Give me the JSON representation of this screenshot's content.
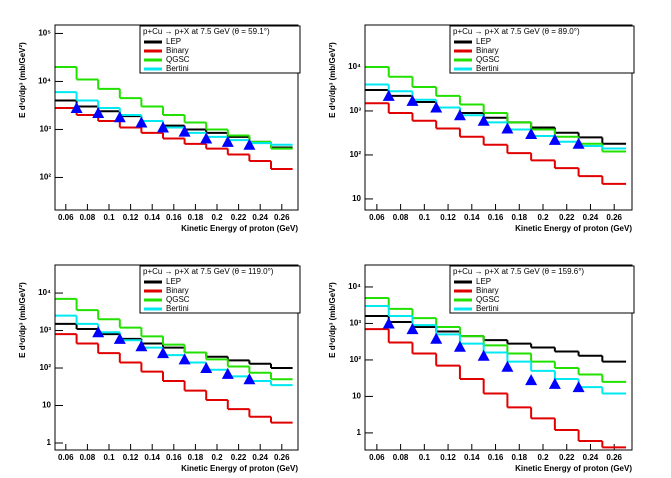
{
  "chart_data": [
    {
      "type": "histogram",
      "title": "p+Cu → p+X at 7.5 GeV (θ = 59.1°)",
      "x_label": "Kinetic Energy of proton (GeV)",
      "y_label": "E d³σ/dp³ (mb/GeV²)",
      "log_y": true,
      "xlim": [
        0.05,
        0.275
      ],
      "xticks": [
        0.06,
        0.08,
        0.1,
        0.12,
        0.14,
        0.16,
        0.18,
        0.2,
        0.22,
        0.24,
        0.26
      ],
      "ylim": [
        21,
        150000
      ],
      "yticks": [
        {
          "value": 100,
          "label": "10²"
        },
        {
          "value": 1000,
          "label": "10³"
        },
        {
          "value": 10000,
          "label": "10⁴"
        },
        {
          "value": 100000,
          "label": "10⁵"
        }
      ],
      "bins": [
        0.05,
        0.07,
        0.09,
        0.11,
        0.13,
        0.15,
        0.17,
        0.19,
        0.21,
        0.23,
        0.25,
        0.27
      ],
      "series": [
        {
          "name": "LEP",
          "color": "#000000",
          "values": [
            4000,
            3000,
            2400,
            1900,
            1500,
            1200,
            1000,
            850,
            700,
            550,
            420
          ]
        },
        {
          "name": "Binary",
          "color": "#e00000",
          "values": [
            2800,
            2000,
            1500,
            1100,
            850,
            650,
            500,
            400,
            300,
            220,
            150
          ]
        },
        {
          "name": "QGSC",
          "color": "#22e000",
          "values": [
            20000,
            11000,
            7000,
            4500,
            3000,
            2000,
            1400,
            1000,
            750,
            550,
            400
          ]
        },
        {
          "name": "Bertini",
          "color": "#00e8f0",
          "values": [
            6000,
            4000,
            2800,
            2000,
            1500,
            1100,
            850,
            700,
            600,
            520,
            480
          ]
        }
      ],
      "points": {
        "color": "#0000ff",
        "x": [
          0.07,
          0.09,
          0.11,
          0.13,
          0.15,
          0.17,
          0.19,
          0.21,
          0.23
        ],
        "values": [
          2800,
          2200,
          1800,
          1400,
          1100,
          900,
          650,
          550,
          480
        ]
      }
    },
    {
      "type": "histogram",
      "title": "p+Cu → p+X at 7.5 GeV (θ = 89.0°)",
      "x_label": "Kinetic Energy of proton (GeV)",
      "y_label": "E d³σ/dp³ (mb/GeV²)",
      "log_y": true,
      "xlim": [
        0.05,
        0.275
      ],
      "xticks": [
        0.06,
        0.08,
        0.1,
        0.12,
        0.14,
        0.16,
        0.18,
        0.2,
        0.22,
        0.24,
        0.26
      ],
      "ylim": [
        5.6,
        90000
      ],
      "yticks": [
        10,
        {
          "value": 100,
          "label": "10²"
        },
        {
          "value": 1000,
          "label": "10³"
        },
        {
          "value": 10000,
          "label": "10⁴"
        }
      ],
      "bins": [
        0.05,
        0.07,
        0.09,
        0.11,
        0.13,
        0.15,
        0.17,
        0.19,
        0.21,
        0.23,
        0.25,
        0.27
      ],
      "series": [
        {
          "name": "LEP",
          "color": "#000000",
          "values": [
            3000,
            2200,
            1600,
            1200,
            900,
            700,
            550,
            420,
            320,
            250,
            180
          ]
        },
        {
          "name": "Binary",
          "color": "#e00000",
          "values": [
            1500,
            900,
            600,
            400,
            260,
            170,
            110,
            75,
            50,
            33,
            22
          ]
        },
        {
          "name": "QGSC",
          "color": "#22e000",
          "values": [
            10000,
            6000,
            3500,
            2200,
            1400,
            900,
            550,
            380,
            260,
            180,
            120
          ]
        },
        {
          "name": "Bertini",
          "color": "#00e8f0",
          "values": [
            4000,
            2800,
            1800,
            1200,
            800,
            550,
            380,
            270,
            200,
            160,
            140
          ]
        }
      ],
      "points": {
        "color": "#0000ff",
        "x": [
          0.07,
          0.09,
          0.11,
          0.13,
          0.15,
          0.17,
          0.19,
          0.21,
          0.23
        ],
        "values": [
          2200,
          1700,
          1200,
          800,
          600,
          400,
          300,
          220,
          180
        ]
      }
    },
    {
      "type": "histogram",
      "title": "p+Cu → p+X at 7.5 GeV (θ = 119.0°)",
      "x_label": "Kinetic Energy of proton (GeV)",
      "y_label": "E d³σ/dp³ (mb/GeV²)",
      "log_y": true,
      "xlim": [
        0.05,
        0.275
      ],
      "xticks": [
        0.06,
        0.08,
        0.1,
        0.12,
        0.14,
        0.16,
        0.18,
        0.2,
        0.22,
        0.24,
        0.26
      ],
      "ylim": [
        0.65,
        56000
      ],
      "yticks": [
        1,
        10,
        {
          "value": 100,
          "label": "10²"
        },
        {
          "value": 1000,
          "label": "10³"
        },
        {
          "value": 10000,
          "label": "10⁴"
        }
      ],
      "bins": [
        0.05,
        0.07,
        0.09,
        0.11,
        0.13,
        0.15,
        0.17,
        0.19,
        0.21,
        0.23,
        0.25,
        0.27
      ],
      "series": [
        {
          "name": "LEP",
          "color": "#000000",
          "values": [
            1500,
            1100,
            800,
            600,
            450,
            350,
            260,
            200,
            160,
            130,
            100
          ]
        },
        {
          "name": "Binary",
          "color": "#e00000",
          "values": [
            800,
            450,
            250,
            140,
            80,
            45,
            25,
            14,
            8,
            5,
            3.5
          ]
        },
        {
          "name": "QGSC",
          "color": "#22e000",
          "values": [
            7000,
            3500,
            2000,
            1200,
            700,
            420,
            260,
            170,
            110,
            75,
            50
          ]
        },
        {
          "name": "Bertini",
          "color": "#00e8f0",
          "values": [
            2500,
            1500,
            900,
            550,
            350,
            220,
            140,
            90,
            60,
            45,
            35
          ]
        }
      ],
      "points": {
        "color": "#0000ff",
        "x": [
          0.09,
          0.11,
          0.13,
          0.15,
          0.17,
          0.19,
          0.21,
          0.23
        ],
        "values": [
          900,
          600,
          380,
          250,
          170,
          100,
          70,
          50
        ]
      }
    },
    {
      "type": "histogram",
      "title": "p+Cu → p+X at 7.5 GeV (θ = 159.6°)",
      "x_label": "Kinetic Energy of proton (GeV)",
      "y_label": "E d³σ/dp³ (mb/GeV²)",
      "log_y": true,
      "xlim": [
        0.05,
        0.275
      ],
      "xticks": [
        0.06,
        0.08,
        0.1,
        0.12,
        0.14,
        0.16,
        0.18,
        0.2,
        0.22,
        0.24,
        0.26
      ],
      "ylim": [
        0.34,
        40000
      ],
      "yticks": [
        1,
        10,
        {
          "value": 100,
          "label": "10²"
        },
        {
          "value": 1000,
          "label": "10³"
        },
        {
          "value": 10000,
          "label": "10⁴"
        }
      ],
      "bins": [
        0.05,
        0.07,
        0.09,
        0.11,
        0.13,
        0.15,
        0.17,
        0.19,
        0.21,
        0.23,
        0.25,
        0.27
      ],
      "series": [
        {
          "name": "LEP",
          "color": "#000000",
          "values": [
            1600,
            1100,
            800,
            600,
            450,
            350,
            280,
            220,
            170,
            130,
            90
          ]
        },
        {
          "name": "Binary",
          "color": "#e00000",
          "values": [
            700,
            300,
            150,
            70,
            30,
            12,
            5,
            2.5,
            1.2,
            0.6,
            0.4
          ]
        },
        {
          "name": "QGSC",
          "color": "#22e000",
          "values": [
            5000,
            2500,
            1400,
            800,
            450,
            250,
            150,
            90,
            60,
            40,
            25
          ]
        },
        {
          "name": "Bertini",
          "color": "#00e8f0",
          "values": [
            3000,
            1600,
            900,
            500,
            280,
            160,
            90,
            50,
            30,
            18,
            12
          ]
        }
      ],
      "points": {
        "color": "#0000ff",
        "x": [
          0.07,
          0.09,
          0.11,
          0.13,
          0.15,
          0.17,
          0.19,
          0.21,
          0.23
        ],
        "values": [
          1000,
          700,
          380,
          230,
          130,
          65,
          28,
          22,
          18
        ]
      }
    }
  ]
}
